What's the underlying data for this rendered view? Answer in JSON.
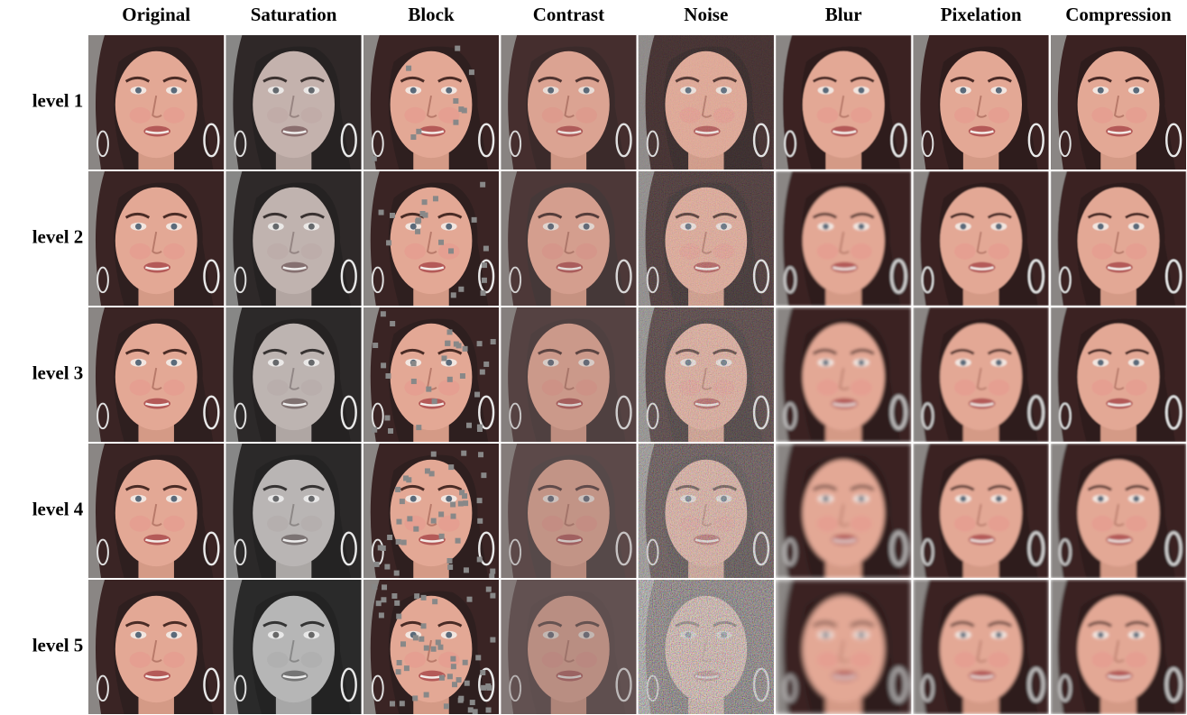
{
  "columns": [
    "Original",
    "Saturation",
    "Block",
    "Contrast",
    "Noise",
    "Blur",
    "Pixelation",
    "Compression"
  ],
  "rows": [
    "level 1",
    "level 2",
    "level 3",
    "level 4",
    "level 5"
  ]
}
